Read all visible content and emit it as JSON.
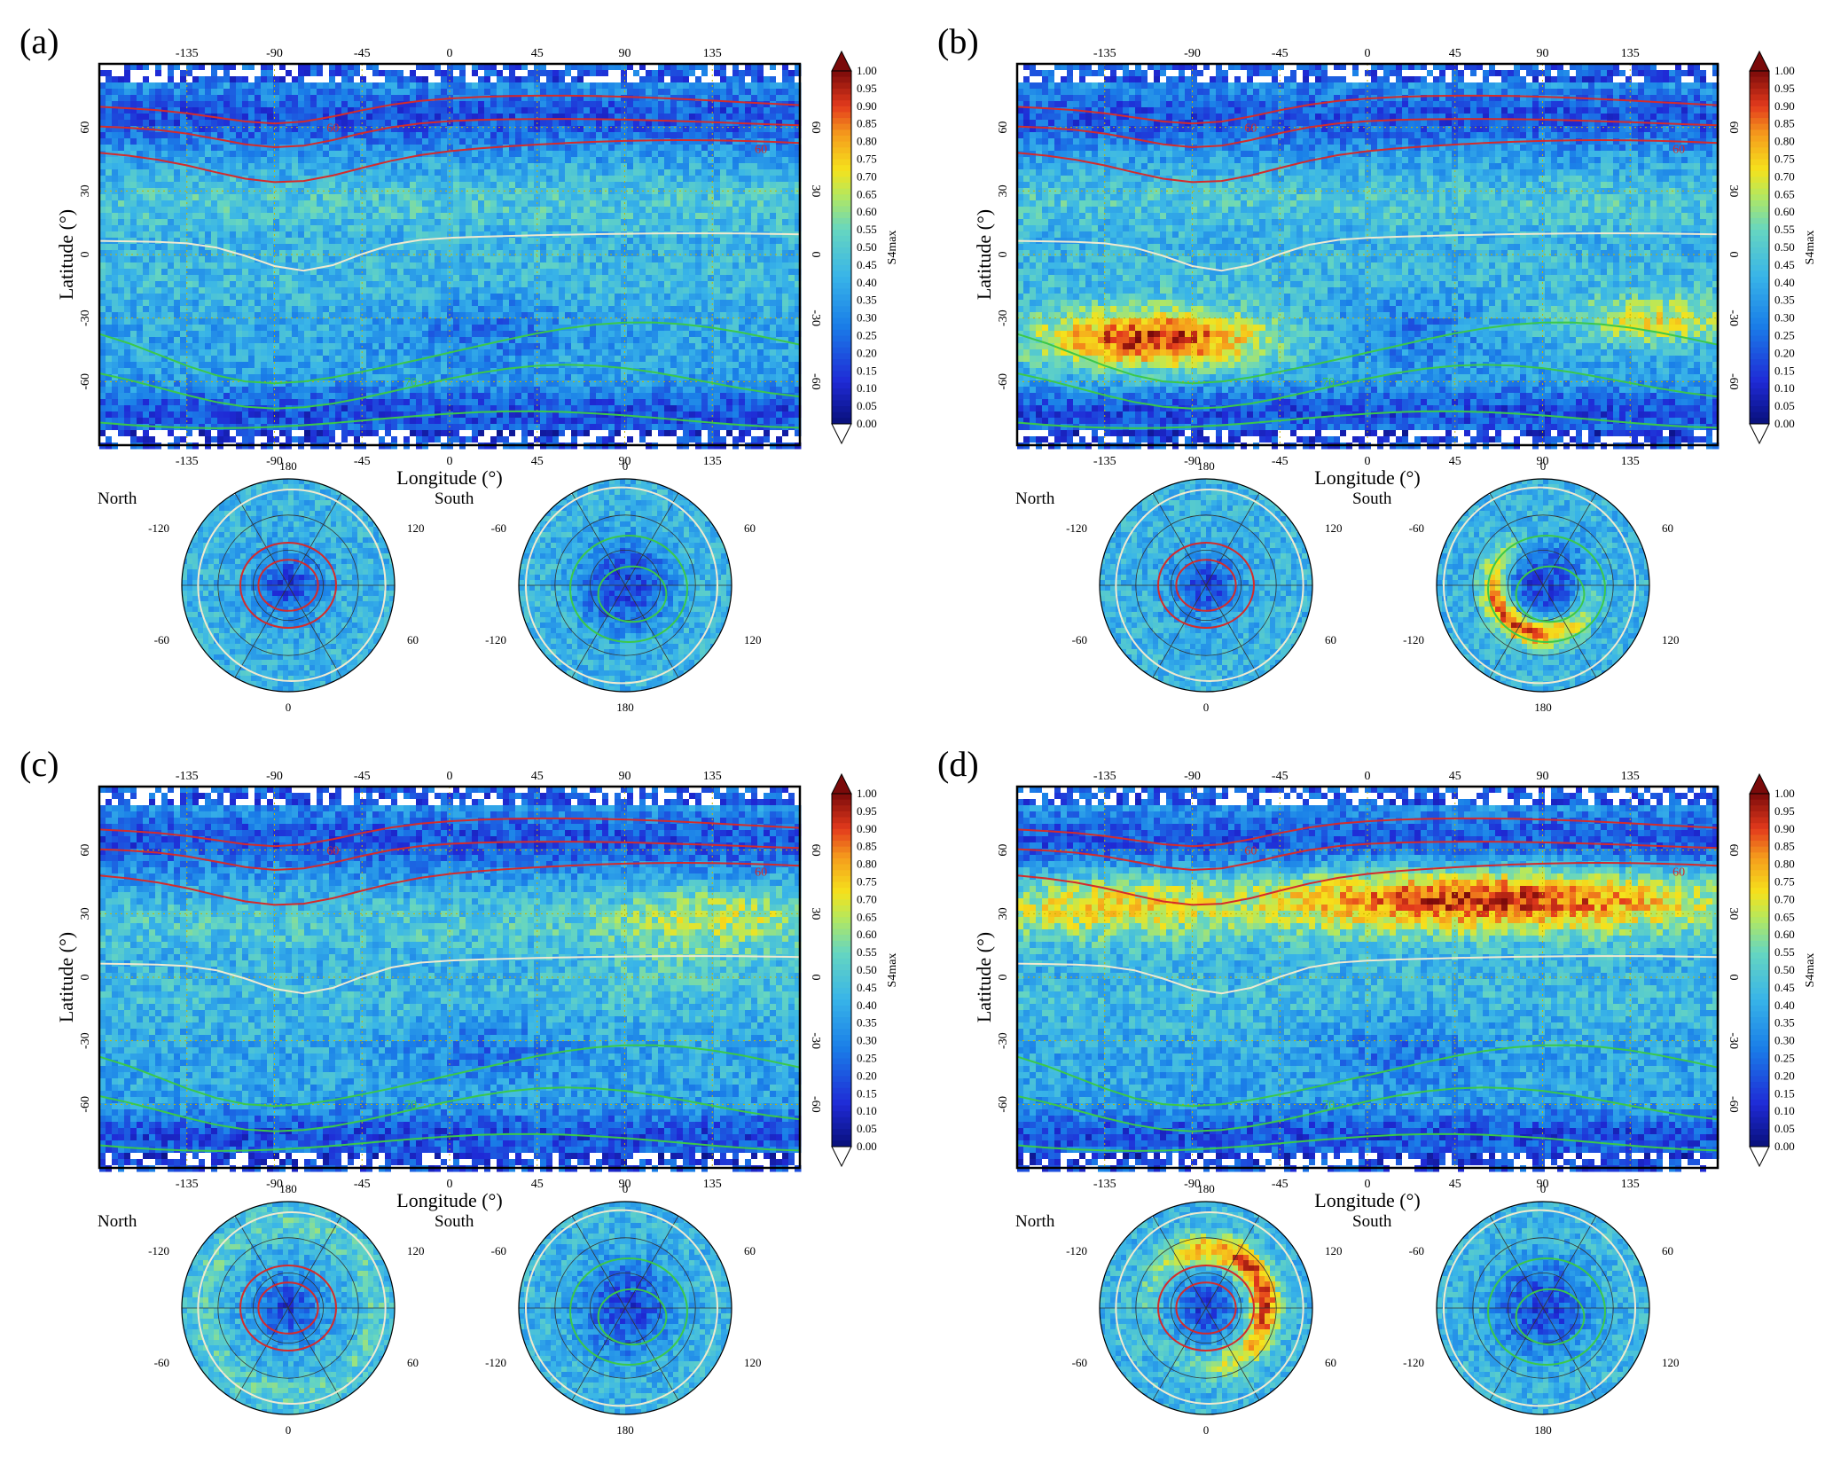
{
  "figure": {
    "panels": [
      {
        "label": "(a)",
        "variant": "a"
      },
      {
        "label": "(b)",
        "variant": "b"
      },
      {
        "label": "(c)",
        "variant": "c"
      },
      {
        "label": "(d)",
        "variant": "d"
      }
    ],
    "map": {
      "xlabel": "Longitude (°)",
      "ylabel": "Latitude (°)",
      "lon_ticks": [
        "-135",
        "-90",
        "-45",
        "0",
        "45",
        "90",
        "135"
      ],
      "lat_ticks_left": [
        "60",
        "30",
        "0",
        "-30",
        "-60"
      ],
      "lat_ticks_right": [
        "60",
        "30",
        "0",
        "-30",
        "-60"
      ],
      "contour_labels": [
        "60",
        "70"
      ]
    },
    "colorbar": {
      "label": "S4max",
      "ticks": [
        "1.00",
        "0.95",
        "0.90",
        "0.85",
        "0.80",
        "0.75",
        "0.70",
        "0.65",
        "0.60",
        "0.55",
        "0.50",
        "0.45",
        "0.40",
        "0.35",
        "0.30",
        "0.25",
        "0.20",
        "0.15",
        "0.10",
        "0.05",
        "0.00"
      ]
    },
    "polar": {
      "north_title": "North",
      "south_title": "South",
      "north_ticks": {
        "top": "180",
        "bottom": "0",
        "upper_left": "-120",
        "upper_right": "120",
        "lower_left": "-60",
        "lower_right": "60"
      },
      "south_ticks": {
        "top": "0",
        "bottom": "180",
        "upper_left": "-60",
        "upper_right": "60",
        "lower_left": "-120",
        "lower_right": "120"
      }
    },
    "colors": {
      "low": "#1f2ad6",
      "mid": "#39b5e8",
      "yellow": "#f5e21c",
      "high": "#d9261c",
      "contour_north": "#d42b2b",
      "contour_south": "#3cc84a",
      "contour_equator": "#f0ead0"
    }
  },
  "chart_data": [
    {
      "type": "heatmap",
      "panel": "(a)",
      "quantity": "S4max",
      "colorbar_range": [
        0,
        1
      ],
      "xlim": [
        -180,
        180
      ],
      "ylim": [
        -90,
        90
      ],
      "x_ticks": [
        -135,
        -90,
        -45,
        0,
        45,
        90,
        135
      ],
      "y_ticks": [
        60,
        30,
        0,
        -30,
        -60
      ],
      "features": [
        {
          "region": "mid-latitude bands",
          "level": "medium",
          "value": 0.4
        },
        {
          "region": "high latitudes",
          "level": "low",
          "value": 0.15
        },
        {
          "region": "south atlantic",
          "level": "low",
          "value": 0.25
        }
      ],
      "polar_maps": [
        "North",
        "South"
      ]
    },
    {
      "type": "heatmap",
      "panel": "(b)",
      "quantity": "S4max",
      "colorbar_range": [
        0,
        1
      ],
      "xlim": [
        -180,
        180
      ],
      "ylim": [
        -90,
        90
      ],
      "features": [
        {
          "region": "southern hemisphere band lon -180 to -45, lat -60 to -25",
          "level": "high",
          "value": 0.95
        },
        {
          "region": "southern hemisphere band lon 90 to 180, lat -40 to -25",
          "level": "elevated",
          "value": 0.7
        },
        {
          "region": "background",
          "level": "medium",
          "value": 0.4
        }
      ],
      "polar_maps": [
        "North",
        "South"
      ]
    },
    {
      "type": "heatmap",
      "panel": "(c)",
      "quantity": "S4max",
      "colorbar_range": [
        0,
        1
      ],
      "xlim": [
        -180,
        180
      ],
      "ylim": [
        -90,
        90
      ],
      "features": [
        {
          "region": "northern mid-latitudes lon 90 to 180, lat 20 to 45",
          "level": "elevated",
          "value": 0.6
        },
        {
          "region": "background",
          "level": "medium",
          "value": 0.4
        },
        {
          "region": "high latitudes",
          "level": "low",
          "value": 0.15
        }
      ],
      "polar_maps": [
        "North",
        "South"
      ]
    },
    {
      "type": "heatmap",
      "panel": "(d)",
      "quantity": "S4max",
      "colorbar_range": [
        0,
        1
      ],
      "xlim": [
        -180,
        180
      ],
      "ylim": [
        -90,
        90
      ],
      "features": [
        {
          "region": "northern band lon -60 to 180, lat 20 to 55",
          "level": "high",
          "value": 0.9
        },
        {
          "region": "northern band lon -180 to -60, lat 20 to 50",
          "level": "elevated",
          "value": 0.65
        },
        {
          "region": "background",
          "level": "medium",
          "value": 0.35
        }
      ],
      "polar_maps": [
        "North",
        "South"
      ]
    }
  ]
}
